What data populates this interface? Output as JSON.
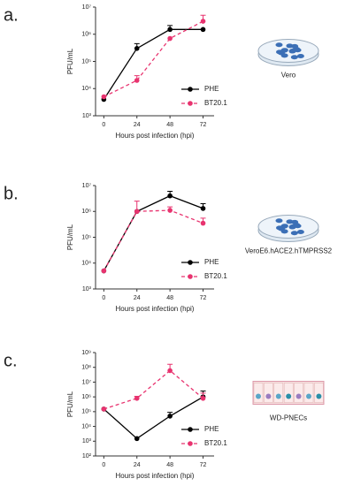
{
  "chart_data": [
    {
      "type": "line",
      "panel_label": "a.",
      "annotation": "Vero",
      "x_label": "Hours post infection (hpi)",
      "y_label": "PFU/mL",
      "x": [
        0,
        24,
        48,
        72
      ],
      "xlim": [
        -6,
        80
      ],
      "xticks": [
        0,
        24,
        48,
        72
      ],
      "ylim": [
        1000,
        10000000
      ],
      "log_scale": true,
      "yticks": [
        {
          "value": 1000,
          "label": "10³"
        },
        {
          "value": 10000,
          "label": "10⁴"
        },
        {
          "value": 100000,
          "label": "10⁵"
        },
        {
          "value": 1000000,
          "label": "10⁶"
        },
        {
          "value": 10000000,
          "label": "10⁷"
        }
      ],
      "legend": "lower right",
      "series": [
        {
          "name": "PHE",
          "color": "#000000",
          "linestyle": "solid",
          "values": [
            4000,
            300000,
            1500000,
            1500000
          ],
          "errors": [
            null,
            150000,
            600000,
            null
          ]
        },
        {
          "name": "BT20.1",
          "color": "#e8336f",
          "linestyle": "dashed",
          "values": [
            5000,
            20000,
            700000,
            3000000
          ],
          "errors": [
            null,
            10000,
            null,
            2000000
          ]
        }
      ]
    },
    {
      "type": "line",
      "panel_label": "b.",
      "annotation": "VeroE6.hACE2.hTMPRSS2",
      "x_label": "Hours post infection (hpi)",
      "y_label": "PFU/mL",
      "x": [
        0,
        24,
        48,
        72
      ],
      "xlim": [
        -6,
        80
      ],
      "xticks": [
        0,
        24,
        48,
        72
      ],
      "ylim": [
        1000,
        10000000
      ],
      "log_scale": true,
      "yticks": [
        {
          "value": 1000,
          "label": "10³"
        },
        {
          "value": 10000,
          "label": "10⁴"
        },
        {
          "value": 100000,
          "label": "10⁵"
        },
        {
          "value": 1000000,
          "label": "10⁶"
        },
        {
          "value": 10000000,
          "label": "10⁷"
        }
      ],
      "legend": "lower right",
      "series": [
        {
          "name": "PHE",
          "color": "#000000",
          "linestyle": "solid",
          "values": [
            5000,
            1000000,
            4000000,
            1300000
          ],
          "errors": [
            null,
            null,
            2000000,
            700000
          ]
        },
        {
          "name": "BT20.1",
          "color": "#e8336f",
          "linestyle": "dashed",
          "values": [
            5000,
            1000000,
            1100000,
            350000
          ],
          "errors": [
            null,
            1500000,
            400000,
            200000
          ]
        }
      ]
    },
    {
      "type": "line",
      "panel_label": "c.",
      "annotation": "WD-PNECs",
      "x_label": "Hours post infection (hpi)",
      "y_label": "PFU/mL",
      "x": [
        0,
        24,
        48,
        72
      ],
      "xlim": [
        -6,
        80
      ],
      "xticks": [
        0,
        24,
        48,
        72
      ],
      "ylim": [
        100,
        1000000000
      ],
      "log_scale": true,
      "yticks": [
        {
          "value": 100,
          "label": "10²"
        },
        {
          "value": 1000,
          "label": "10³"
        },
        {
          "value": 10000,
          "label": "10⁴"
        },
        {
          "value": 100000,
          "label": "10⁵"
        },
        {
          "value": 1000000,
          "label": "10⁶"
        },
        {
          "value": 10000000,
          "label": "10⁷"
        },
        {
          "value": 100000000,
          "label": "10⁸"
        },
        {
          "value": 1000000000,
          "label": "10⁹"
        }
      ],
      "legend": "lower right",
      "series": [
        {
          "name": "PHE",
          "color": "#000000",
          "linestyle": "solid",
          "values": [
            150000,
            1500,
            50000,
            1000000
          ],
          "errors": [
            null,
            null,
            40000,
            1500000
          ]
        },
        {
          "name": "BT20.1",
          "color": "#e8336f",
          "linestyle": "dashed",
          "values": [
            150000,
            800000,
            60000000,
            800000
          ],
          "errors": [
            null,
            300000,
            100000000,
            1000000
          ]
        }
      ]
    }
  ]
}
